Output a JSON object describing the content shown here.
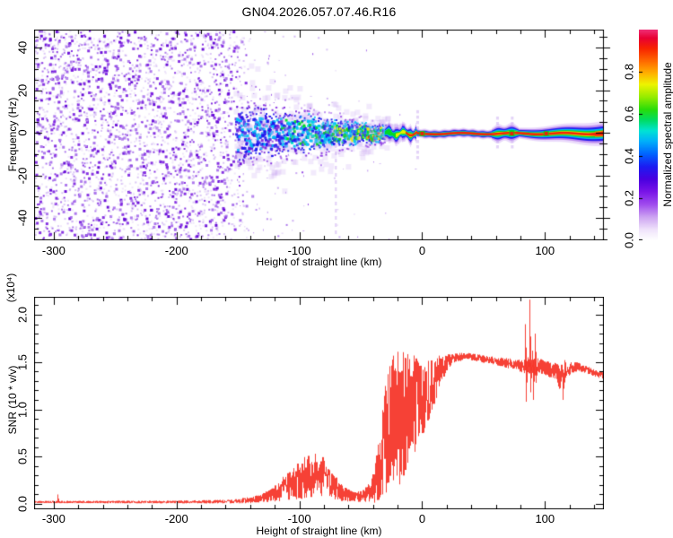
{
  "title": "GN04.2026.057.07.46.R16",
  "figure": {
    "background": "#ffffff",
    "frame_color": "#000000",
    "text_color": "#000000"
  },
  "chart_data": [
    {
      "type": "heatmap",
      "panel": "doppler-spectrogram",
      "xlabel": "Height of straight line (km)",
      "ylabel": "Frequency (Hz)",
      "xlim": [
        -316,
        148
      ],
      "ylim": [
        -50.5,
        48.4
      ],
      "xticks": {
        "major": [
          -300,
          -200,
          -100,
          0,
          100
        ],
        "labels": [
          "-300",
          "-200",
          "-100",
          "0",
          "100"
        ],
        "minor_step": 20
      },
      "yticks": {
        "major": [
          40,
          20,
          0,
          -20,
          -40
        ],
        "labels": [
          "40",
          "20",
          "0",
          "-20",
          "-40"
        ],
        "minor_step": 5
      },
      "colorbar": {
        "label": "Normalized spectral amplitude",
        "range": [
          0,
          1
        ],
        "ticks": [
          0,
          0.2,
          0.4,
          0.6,
          0.8
        ],
        "tick_labels": [
          "0.0",
          "0.2",
          "0.4",
          "0.6",
          "0.8"
        ],
        "stops": [
          [
            0.0,
            "#ffffff"
          ],
          [
            0.05,
            "#f0e4fb"
          ],
          [
            0.11,
            "#cda4f2"
          ],
          [
            0.17,
            "#a04cee"
          ],
          [
            0.23,
            "#7a14e8"
          ],
          [
            0.29,
            "#4a00e0"
          ],
          [
            0.35,
            "#1c1cf2"
          ],
          [
            0.41,
            "#0064ff"
          ],
          [
            0.47,
            "#00b0fa"
          ],
          [
            0.52,
            "#00e4d4"
          ],
          [
            0.57,
            "#00dc64"
          ],
          [
            0.62,
            "#28dc0a"
          ],
          [
            0.68,
            "#96ec00"
          ],
          [
            0.74,
            "#eef400"
          ],
          [
            0.79,
            "#ffb400"
          ],
          [
            0.85,
            "#ff6a00"
          ],
          [
            0.91,
            "#f82400"
          ],
          [
            0.96,
            "#e80034"
          ],
          [
            1.0,
            "#f03078"
          ]
        ]
      },
      "signal": {
        "noise_field": {
          "x_range": [
            -316,
            -150
          ],
          "fade_out_x": [
            -163,
            -138
          ],
          "dot_colors": [
            "#e2d0f8",
            "#c3a0f0",
            "#9b5ae8",
            "#7d22e0",
            "#6a10d8"
          ],
          "density_per_col": 13
        },
        "scatter_tail": {
          "x_range": [
            -150,
            -32
          ],
          "decay_km": 40
        },
        "band": {
          "x_range": [
            -152,
            -28
          ],
          "center_hz": -0.5,
          "halfwidth_hz_start": 17,
          "halfwidth_hz_end": 4.5,
          "hot_colors_from_km": -95
        },
        "carrier_line": {
          "x_range": [
            -30,
            148
          ],
          "center_hz": -0.7,
          "core_color": "#f41808",
          "features": [
            {
              "km": -71,
              "type": "dashed-streak-down",
              "to_hz": -46
            },
            {
              "km": -4,
              "type": "plume",
              "span_hz": 11
            },
            {
              "km": 0,
              "type": "knot"
            },
            {
              "km": 61,
              "type": "plume",
              "span_hz": 8
            },
            {
              "km": 73,
              "type": "plume-knot",
              "span_hz": 8
            },
            {
              "km": 101,
              "type": "knot"
            },
            {
              "km": 148,
              "type": "wide-end",
              "halfwidth_hz": 5.8
            }
          ]
        }
      }
    },
    {
      "type": "line",
      "panel": "snr",
      "xlabel": "Height of straight line (km)",
      "ylabel": "SNR (10 * v/v)",
      "scale_label": "(x10⁴)",
      "color": "#f5372b",
      "xlim": [
        -316,
        148
      ],
      "ylim": [
        0,
        2.2
      ],
      "xticks": {
        "major": [
          -300,
          -200,
          -100,
          0,
          100
        ],
        "labels": [
          "-300",
          "-200",
          "-100",
          "0",
          "100"
        ],
        "minor_step": 20
      },
      "yticks": {
        "major": [
          2.0,
          1.5,
          1.0,
          0.5,
          0.0
        ],
        "labels": [
          "2.0",
          "1.5",
          "1.0",
          "0.5",
          "0.0"
        ],
        "minor_step": 0.1
      },
      "control_points": [
        [
          -316,
          0.02,
          0.012
        ],
        [
          -200,
          0.02,
          0.015
        ],
        [
          -155,
          0.025,
          0.02
        ],
        [
          -140,
          0.04,
          0.035
        ],
        [
          -128,
          0.07,
          0.06
        ],
        [
          -118,
          0.12,
          0.1
        ],
        [
          -108,
          0.2,
          0.16
        ],
        [
          -98,
          0.26,
          0.22
        ],
        [
          -88,
          0.3,
          0.26
        ],
        [
          -80,
          0.26,
          0.22
        ],
        [
          -72,
          0.18,
          0.14
        ],
        [
          -64,
          0.1,
          0.08
        ],
        [
          -56,
          0.07,
          0.05
        ],
        [
          -48,
          0.08,
          0.07
        ],
        [
          -42,
          0.12,
          0.12
        ],
        [
          -37,
          0.3,
          0.3
        ],
        [
          -33,
          0.55,
          0.5
        ],
        [
          -28,
          0.75,
          0.65
        ],
        [
          -22,
          0.85,
          0.8
        ],
        [
          -16,
          0.9,
          0.7
        ],
        [
          -10,
          1.0,
          0.55
        ],
        [
          -5,
          1.05,
          0.5
        ],
        [
          0,
          1.1,
          0.42
        ],
        [
          5,
          1.2,
          0.32
        ],
        [
          10,
          1.3,
          0.25
        ],
        [
          15,
          1.42,
          0.15
        ],
        [
          20,
          1.5,
          0.08
        ],
        [
          26,
          1.54,
          0.05
        ],
        [
          35,
          1.56,
          0.04
        ],
        [
          45,
          1.54,
          0.04
        ],
        [
          55,
          1.52,
          0.04
        ],
        [
          65,
          1.5,
          0.05
        ],
        [
          75,
          1.47,
          0.06
        ],
        [
          82,
          1.45,
          0.07
        ],
        [
          93,
          1.45,
          0.1
        ],
        [
          100,
          1.43,
          0.08
        ],
        [
          108,
          1.4,
          0.09
        ],
        [
          114,
          1.3,
          0.18
        ],
        [
          118,
          1.42,
          0.08
        ],
        [
          125,
          1.45,
          0.05
        ],
        [
          133,
          1.42,
          0.04
        ],
        [
          141,
          1.38,
          0.04
        ],
        [
          148,
          1.35,
          0.04
        ]
      ],
      "spikes": [
        [
          -297,
          0.1
        ],
        [
          83.5,
          1.9
        ],
        [
          84.7,
          1.08
        ],
        [
          85.8,
          1.55
        ],
        [
          87,
          2.16
        ],
        [
          88.2,
          1.18
        ],
        [
          89.5,
          1.62
        ],
        [
          90.5,
          1.1
        ],
        [
          91.7,
          1.8
        ],
        [
          92.8,
          1.28
        ],
        [
          114.5,
          1.1
        ],
        [
          116,
          1.52
        ]
      ]
    }
  ]
}
